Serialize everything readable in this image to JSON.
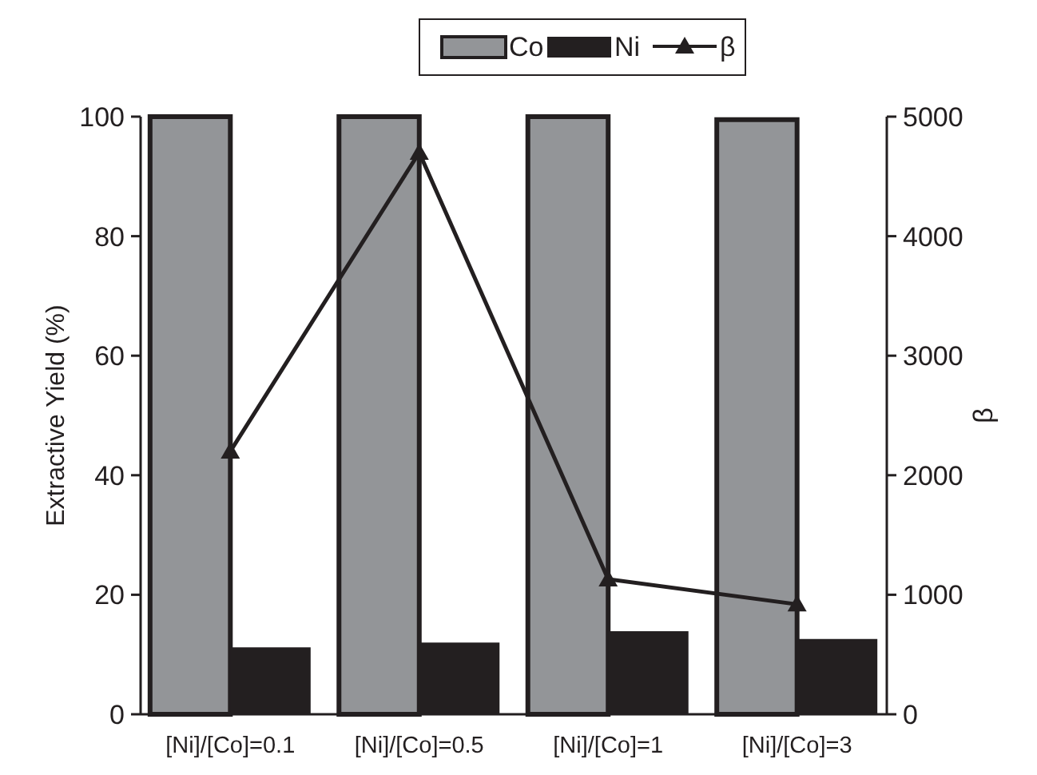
{
  "chart_data": {
    "type": "bar",
    "categories": [
      "[Ni]/[Co]=0.1",
      "[Ni]/[Co]=0.5",
      "[Ni]/[Co]=1",
      "[Ni]/[Co]=3"
    ],
    "series": [
      {
        "name": "Co",
        "color": "#939598",
        "values": [
          100,
          100,
          100,
          99.5
        ]
      },
      {
        "name": "Ni",
        "color": "#231f20",
        "values": [
          11.2,
          12,
          13.9,
          12.6
        ]
      },
      {
        "name": "β",
        "type": "line",
        "axis": "y2",
        "color": "#231f20",
        "values": [
          2200,
          4700,
          1130,
          920
        ]
      }
    ],
    "ylabel": "Extractive Yield (%)",
    "y2label": "β",
    "ylim": [
      0,
      100
    ],
    "yticks": [
      0,
      20,
      40,
      60,
      80,
      100
    ],
    "y2lim": [
      0,
      5000
    ],
    "y2ticks": [
      0,
      1000,
      2000,
      3000,
      4000,
      5000
    ],
    "legend": "top",
    "marker": "triangle",
    "grid": false
  }
}
